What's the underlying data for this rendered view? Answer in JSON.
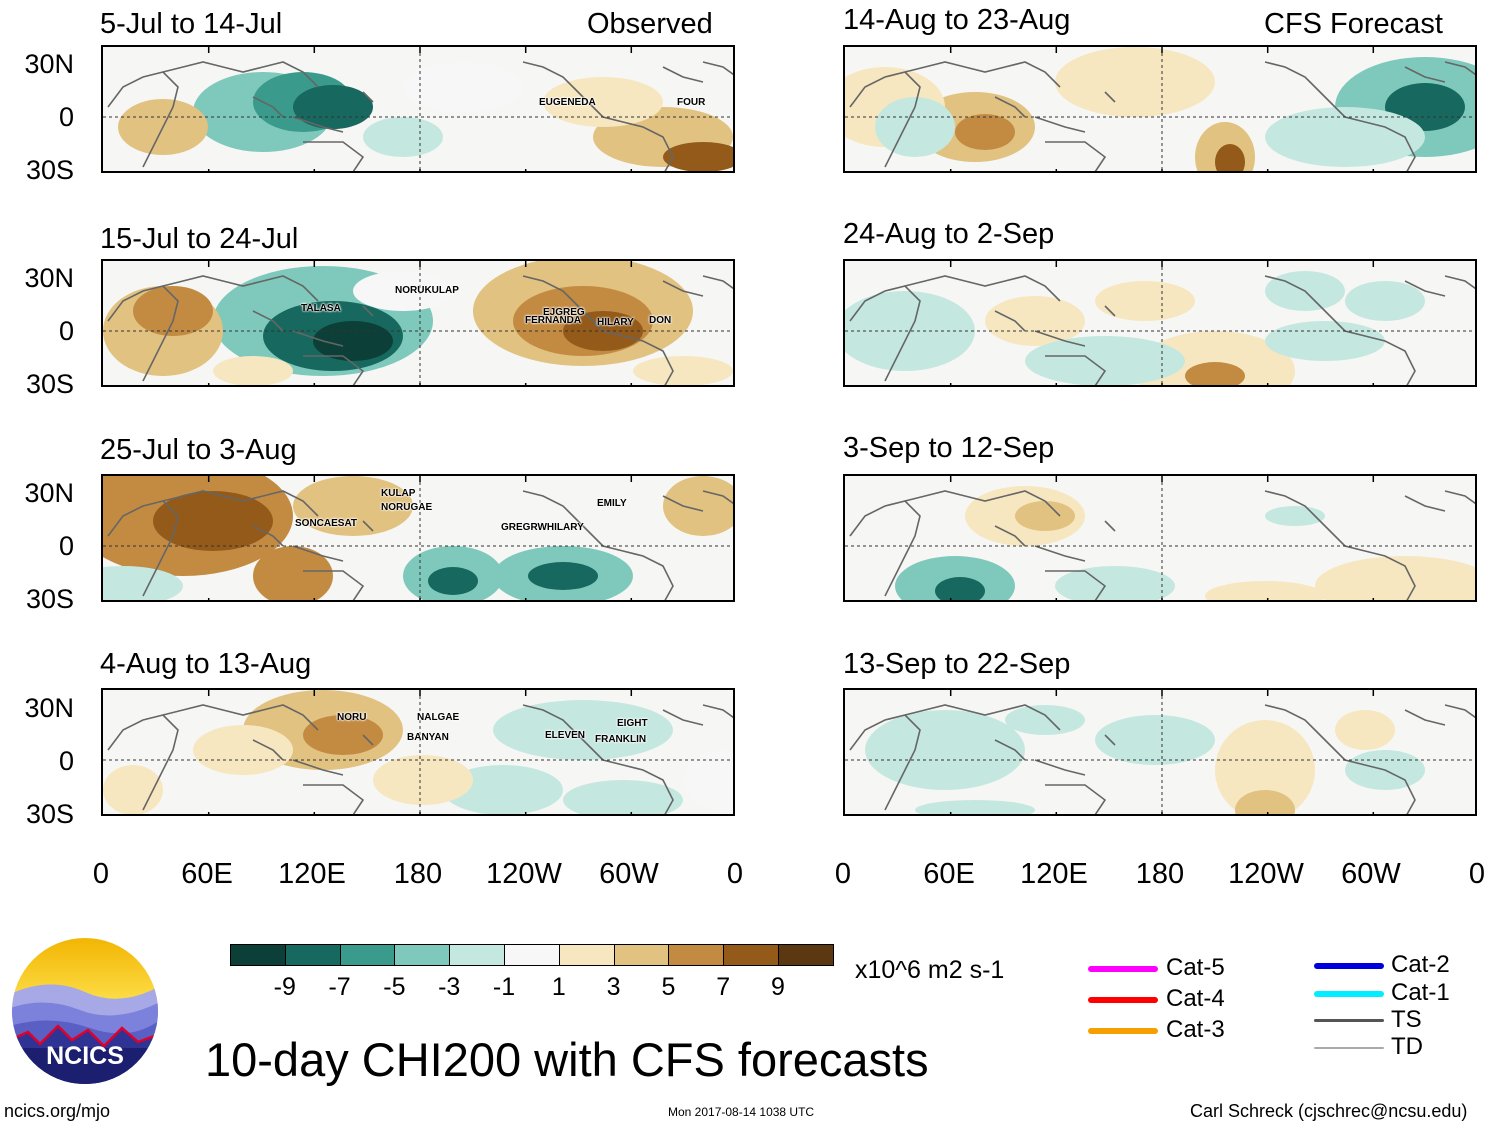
{
  "labels": {
    "observed": "Observed",
    "forecast": "CFS Forecast",
    "main_title": "10-day CHI200 with CFS forecasts",
    "site": "ncics.org/mjo",
    "timestamp": "Mon 2017-08-14 1038 UTC",
    "author": "Carl Schreck (cjschrec@ncsu.edu)",
    "units": "x10^6 m2 s-1",
    "logo_text": "NCICS"
  },
  "latitude_ticks": [
    "30N",
    "0",
    "30S"
  ],
  "longitude_ticks": [
    "0",
    "60E",
    "120E",
    "180",
    "120W",
    "60W",
    "0"
  ],
  "panels": {
    "observed": [
      {
        "title": "5-Jul to 14-Jul",
        "storms": [
          "EUGENEDA",
          "FOUR"
        ]
      },
      {
        "title": "15-Jul to 24-Jul",
        "storms": [
          "TALASA",
          "NORUKULAP",
          "FERNANDA",
          "EJGREG",
          "HILARY",
          "DON"
        ]
      },
      {
        "title": "25-Jul to 3-Aug",
        "storms": [
          "SONCAESAT",
          "KULAP",
          "NORUGAE",
          "GREGRWHILARY",
          "EMILY"
        ]
      },
      {
        "title": "4-Aug to 13-Aug",
        "storms": [
          "NORU",
          "NALGAE",
          "BANYAN",
          "ELEVEN",
          "EIGHT",
          "FRANKLIN"
        ]
      }
    ],
    "forecast": [
      {
        "title": "14-Aug to 23-Aug"
      },
      {
        "title": "24-Aug to 2-Sep"
      },
      {
        "title": "3-Sep to 12-Sep"
      },
      {
        "title": "13-Sep to 22-Sep"
      }
    ]
  },
  "colorbar": {
    "colors": [
      "#0b3f37",
      "#17685e",
      "#3a9a8c",
      "#7ec9bb",
      "#c4e8e0",
      "#f7f7f7",
      "#f6e7c0",
      "#e1c280",
      "#c38b42",
      "#935a1a",
      "#5b3812"
    ],
    "labels": [
      "-9",
      "-7",
      "-5",
      "-3",
      "-1",
      "1",
      "3",
      "5",
      "7",
      "9"
    ]
  },
  "storm_legend": [
    {
      "label": "Cat-5",
      "color": "#ff00ff"
    },
    {
      "label": "Cat-4",
      "color": "#ff0000"
    },
    {
      "label": "Cat-3",
      "color": "#f5a000"
    },
    {
      "label": "Cat-2",
      "color": "#0000dd"
    },
    {
      "label": "Cat-1",
      "color": "#00eeff"
    },
    {
      "label": "TS",
      "color": "#555555"
    },
    {
      "label": "TD",
      "color": "#aaaaaa"
    }
  ]
}
